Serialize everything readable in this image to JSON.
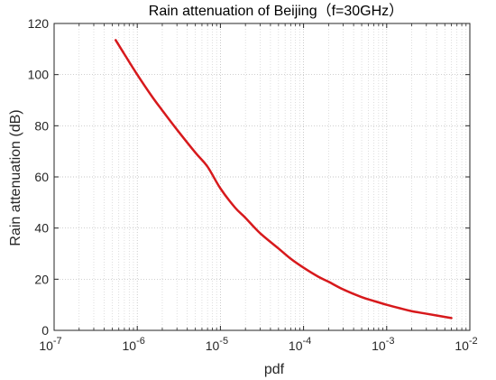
{
  "chart_data": {
    "type": "line",
    "title": "Rain attenuation of Beijing（f=30GHz）",
    "xlabel": "pdf",
    "ylabel": "Rain attenuation (dB)",
    "x_scale": "log",
    "xlim": [
      1e-07,
      0.01
    ],
    "ylim": [
      0,
      120
    ],
    "x_ticks": [
      1e-07,
      1e-06,
      1e-05,
      0.0001,
      0.001,
      0.01
    ],
    "x_tick_labels": [
      {
        "base": "10",
        "exp": "-7"
      },
      {
        "base": "10",
        "exp": "-6"
      },
      {
        "base": "10",
        "exp": "-5"
      },
      {
        "base": "10",
        "exp": "-4"
      },
      {
        "base": "10",
        "exp": "-3"
      },
      {
        "base": "10",
        "exp": "-2"
      }
    ],
    "y_ticks": [
      0,
      20,
      40,
      60,
      80,
      100,
      120
    ],
    "y_tick_labels": [
      "0",
      "20",
      "40",
      "60",
      "80",
      "100",
      "120"
    ],
    "grid": true,
    "series": [
      {
        "color": "#d7191c",
        "x": [
          5.5e-07,
          7e-07,
          1e-06,
          1.5e-06,
          2e-06,
          3e-06,
          5e-06,
          7e-06,
          1e-05,
          1.5e-05,
          2e-05,
          3e-05,
          5e-05,
          7e-05,
          0.0001,
          0.00015,
          0.0002,
          0.0003,
          0.0005,
          0.0007,
          0.001,
          0.0015,
          0.002,
          0.003,
          0.006
        ],
        "y": [
          113.5,
          108,
          100,
          91.5,
          86,
          78.5,
          69.5,
          64,
          55.5,
          48,
          44,
          38,
          32,
          28,
          24.5,
          21,
          19,
          16,
          13,
          11.5,
          10,
          8.5,
          7.5,
          6.5,
          4.8
        ]
      }
    ]
  }
}
